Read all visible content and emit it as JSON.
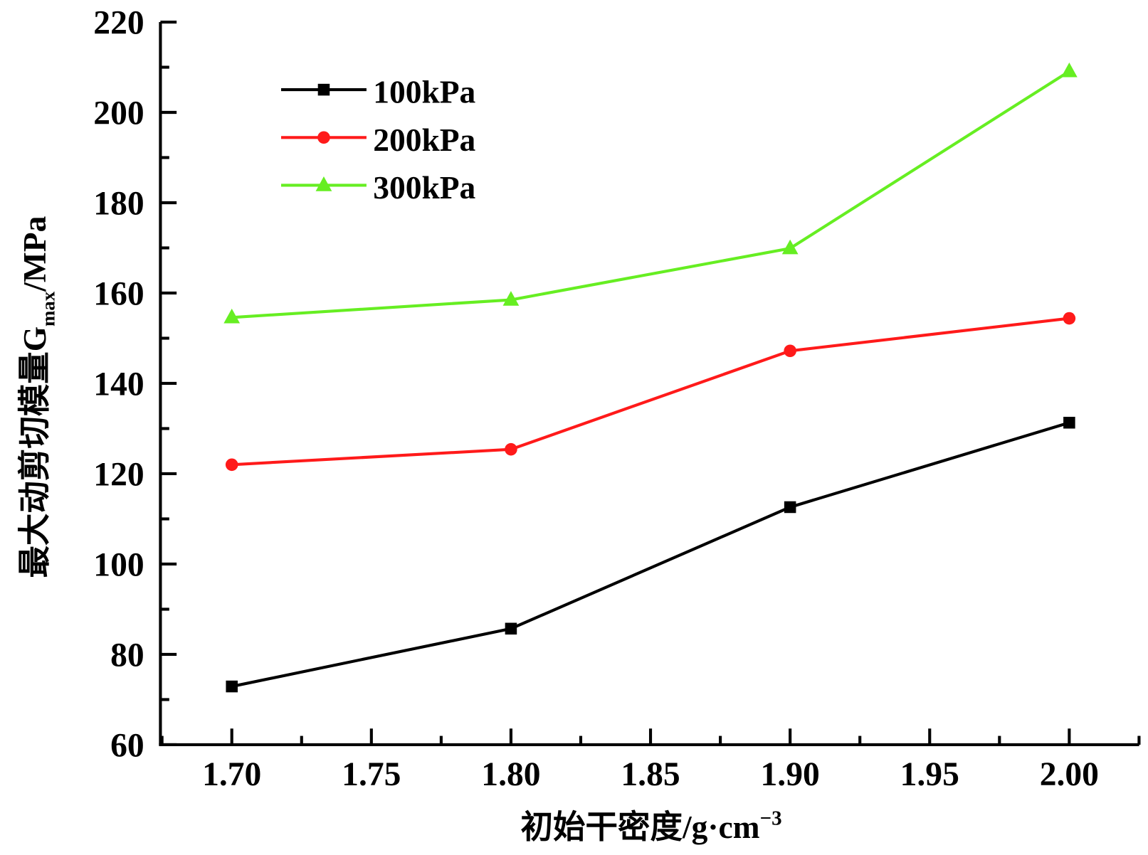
{
  "chart_data": {
    "type": "line",
    "title": "",
    "xlabel": "初始干密度/g·cm⁻³",
    "xlabel_main": "初始干密度/g·cm",
    "xlabel_sup": "−3",
    "ylabel_main": "最大动剪切模量G",
    "ylabel_sub": "max",
    "ylabel_unit": "/MPa",
    "ylabel": "最大动剪切模量G_max/MPa",
    "x": [
      1.7,
      1.8,
      1.9,
      2.0
    ],
    "xlim": [
      1.675,
      2.025
    ],
    "ylim": [
      60,
      220
    ],
    "xticks": [
      "1.70",
      "1.75",
      "1.80",
      "1.85",
      "1.90",
      "1.95",
      "2.00"
    ],
    "yticks": [
      "60",
      "80",
      "100",
      "120",
      "140",
      "160",
      "180",
      "200",
      "220"
    ],
    "grid": false,
    "legend_position": "top-left",
    "series": [
      {
        "name": "100kPa",
        "color": "#000000",
        "marker": "square",
        "values": [
          72.9,
          85.7,
          112.6,
          131.3
        ]
      },
      {
        "name": "200kPa",
        "color": "#ff1a1a",
        "marker": "circle",
        "values": [
          122.0,
          125.4,
          147.2,
          154.4
        ]
      },
      {
        "name": "300kPa",
        "color": "#66ee22",
        "marker": "triangle",
        "values": [
          154.6,
          158.5,
          169.9,
          209.1
        ]
      }
    ]
  }
}
